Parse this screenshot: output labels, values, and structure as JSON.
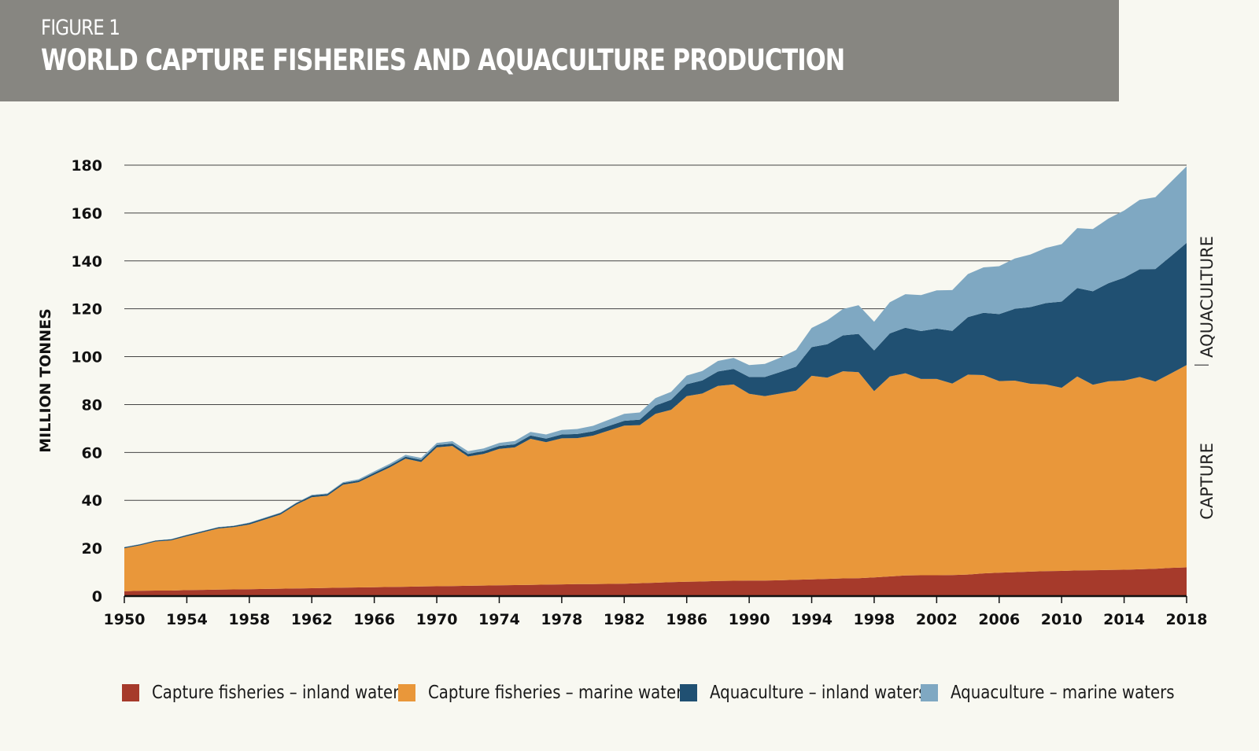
{
  "header": {
    "figure_label": "FIGURE 1",
    "title": "WORLD CAPTURE FISHERIES AND AQUACULTURE PRODUCTION"
  },
  "chart_data": {
    "type": "area",
    "stacked": true,
    "title": "WORLD CAPTURE FISHERIES AND AQUACULTURE PRODUCTION",
    "xlabel": "",
    "ylabel": "MILLION TONNES",
    "xlim": [
      1950,
      2018
    ],
    "ylim": [
      0,
      180
    ],
    "grid": true,
    "legend": "bottom",
    "x_ticks": [
      "1950",
      "1954",
      "1958",
      "1962",
      "1966",
      "1970",
      "1974",
      "1978",
      "1982",
      "1986",
      "1990",
      "1994",
      "1998",
      "2002",
      "2006",
      "2010",
      "2014",
      "2018"
    ],
    "y_ticks": [
      "0",
      "20",
      "40",
      "60",
      "80",
      "100",
      "120",
      "140",
      "160",
      "180"
    ],
    "right_labels": [
      {
        "text": "AQUACULTURE"
      },
      {
        "text": "CAPTURE"
      }
    ],
    "x": [
      1950,
      1951,
      1952,
      1953,
      1954,
      1955,
      1956,
      1957,
      1958,
      1959,
      1960,
      1961,
      1962,
      1963,
      1964,
      1965,
      1966,
      1967,
      1968,
      1969,
      1970,
      1971,
      1972,
      1973,
      1974,
      1975,
      1976,
      1977,
      1978,
      1979,
      1980,
      1981,
      1982,
      1983,
      1984,
      1985,
      1986,
      1987,
      1988,
      1989,
      1990,
      1991,
      1992,
      1993,
      1994,
      1995,
      1996,
      1997,
      1998,
      1999,
      2000,
      2001,
      2002,
      2003,
      2004,
      2005,
      2006,
      2007,
      2008,
      2009,
      2010,
      2011,
      2012,
      2013,
      2014,
      2015,
      2016,
      2017,
      2018
    ],
    "series": [
      {
        "name": "Capture fisheries – inland waters",
        "color": "#a63a2b",
        "values": [
          2,
          2.2,
          2.3,
          2.3,
          2.5,
          2.6,
          2.7,
          2.8,
          2.9,
          3.0,
          3.1,
          3.2,
          3.3,
          3.4,
          3.5,
          3.6,
          3.7,
          3.8,
          3.9,
          4.0,
          4.1,
          4.2,
          4.3,
          4.4,
          4.5,
          4.6,
          4.7,
          4.8,
          4.9,
          5.0,
          5.0,
          5.1,
          5.2,
          5.4,
          5.6,
          5.8,
          6.0,
          6.1,
          6.3,
          6.4,
          6.5,
          6.5,
          6.6,
          6.8,
          7.0,
          7.2,
          7.4,
          7.5,
          7.8,
          8.2,
          8.6,
          8.7,
          8.7,
          8.8,
          9.0,
          9.5,
          9.8,
          10.0,
          10.2,
          10.4,
          10.5,
          10.7,
          10.8,
          10.9,
          11.0,
          11.2,
          11.4,
          11.8,
          12.0
        ]
      },
      {
        "name": "Capture fisheries – marine waters",
        "color": "#e9973a",
        "values": [
          18,
          19,
          20.5,
          21,
          22.5,
          24,
          25.5,
          26,
          27,
          29,
          31,
          35,
          38,
          38.5,
          43,
          44,
          47,
          50,
          53.5,
          52,
          58,
          58.5,
          54,
          55,
          57,
          57.5,
          61,
          59.5,
          61,
          61,
          62,
          64,
          66,
          66,
          70.5,
          72,
          77.5,
          78.5,
          81.5,
          82,
          78,
          77,
          78,
          79,
          85,
          84,
          86.5,
          86,
          77.8,
          83.5,
          84.5,
          82,
          82,
          80,
          83.5,
          82.8,
          80,
          80,
          78.5,
          78,
          76.5,
          81,
          77.5,
          78.8,
          79,
          80.3,
          78.2,
          81.2,
          84.5
        ]
      },
      {
        "name": "Aquaculture – inland waters",
        "color": "#205072",
        "values": [
          0.4,
          0.4,
          0.4,
          0.4,
          0.5,
          0.5,
          0.5,
          0.5,
          0.6,
          0.6,
          0.6,
          0.6,
          0.7,
          0.7,
          0.7,
          0.7,
          0.8,
          0.8,
          0.8,
          0.9,
          1.0,
          1.0,
          1.1,
          1.1,
          1.2,
          1.3,
          1.4,
          1.5,
          1.6,
          1.7,
          1.8,
          1.9,
          2.0,
          2.3,
          3.5,
          4.2,
          5,
          5.5,
          6,
          6.5,
          7,
          8,
          9,
          10,
          12,
          14,
          15,
          16,
          17,
          18,
          19,
          20,
          21,
          22,
          24,
          26,
          28,
          30,
          32,
          34,
          36,
          37,
          39,
          41,
          43,
          45,
          47,
          49,
          51
        ]
      },
      {
        "name": "Aquaculture – marine waters",
        "color": "#7fa8c2",
        "values": [
          0.1,
          0.1,
          0.1,
          0.1,
          0.1,
          0.1,
          0.1,
          0.1,
          0.2,
          0.2,
          0.2,
          0.2,
          0.3,
          0.3,
          0.4,
          0.5,
          0.6,
          0.7,
          0.8,
          0.8,
          0.9,
          1.0,
          1.1,
          1.2,
          1.3,
          1.4,
          1.5,
          1.7,
          1.9,
          2.1,
          2.3,
          2.6,
          2.9,
          3.0,
          3.1,
          3.3,
          3.6,
          3.9,
          4.4,
          4.6,
          5,
          5.5,
          6,
          7,
          8,
          10,
          11,
          12,
          12,
          13,
          14,
          15,
          16,
          17,
          18,
          19,
          20,
          21,
          22,
          23,
          24,
          25,
          26,
          27,
          28,
          29,
          30,
          31,
          32
        ]
      }
    ]
  }
}
